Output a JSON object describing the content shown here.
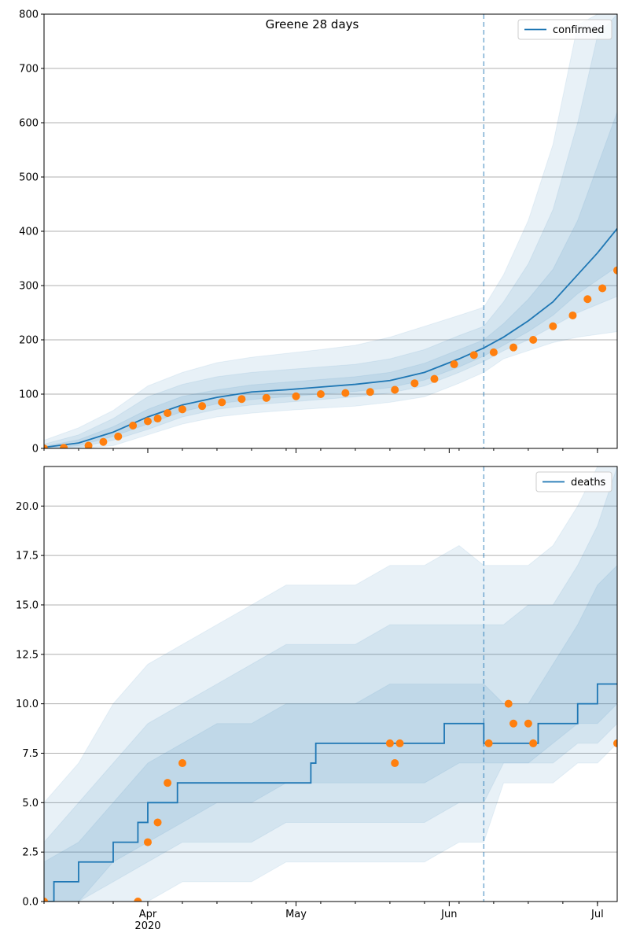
{
  "colors": {
    "line": "#1f77b4",
    "band": "#1f77b4",
    "points": "#ff7f0e",
    "grid": "#b0b0b0",
    "forecast_line": "#1f77b4"
  },
  "chart_data": [
    {
      "type": "line",
      "title": "Greene 28 days",
      "xlabel": "",
      "ylabel": "",
      "x_range": [
        "2020-03-11",
        "2020-07-05"
      ],
      "ylim": [
        0,
        800
      ],
      "yticks": [
        0,
        100,
        200,
        300,
        400,
        500,
        600,
        700,
        800
      ],
      "ytick_labels": [
        "0",
        "100",
        "200",
        "300",
        "400",
        "500",
        "600",
        "700",
        "800"
      ],
      "grid": "horizontal",
      "legend": "top-right",
      "forecast_start": "2020-06-08",
      "series": [
        {
          "name": "confirmed",
          "kind": "median",
          "x": [
            "2020-03-11",
            "2020-03-18",
            "2020-03-25",
            "2020-04-01",
            "2020-04-08",
            "2020-04-15",
            "2020-04-22",
            "2020-04-29",
            "2020-05-06",
            "2020-05-13",
            "2020-05-20",
            "2020-05-27",
            "2020-06-03",
            "2020-06-08",
            "2020-06-12",
            "2020-06-17",
            "2020-06-22",
            "2020-06-27",
            "2020-07-01",
            "2020-07-05"
          ],
          "values": [
            2,
            10,
            30,
            58,
            80,
            94,
            104,
            108,
            113,
            118,
            125,
            140,
            165,
            185,
            205,
            235,
            270,
            320,
            360,
            405
          ]
        },
        {
          "name": "",
          "kind": "observed",
          "x": [
            "2020-03-11",
            "2020-03-15",
            "2020-03-20",
            "2020-03-23",
            "2020-03-26",
            "2020-03-29",
            "2020-04-01",
            "2020-04-03",
            "2020-04-05",
            "2020-04-08",
            "2020-04-12",
            "2020-04-16",
            "2020-04-20",
            "2020-04-25",
            "2020-05-01",
            "2020-05-06",
            "2020-05-11",
            "2020-05-16",
            "2020-05-21",
            "2020-05-25",
            "2020-05-29",
            "2020-06-02",
            "2020-06-06",
            "2020-06-10",
            "2020-06-14",
            "2020-06-18",
            "2020-06-22",
            "2020-06-26",
            "2020-06-29",
            "2020-07-02",
            "2020-07-05"
          ],
          "values": [
            0,
            1,
            5,
            12,
            22,
            42,
            50,
            55,
            65,
            72,
            78,
            85,
            91,
            93,
            96,
            100,
            102,
            104,
            108,
            120,
            128,
            155,
            172,
            177,
            186,
            200,
            225,
            245,
            275,
            295,
            328
          ]
        }
      ],
      "bands": [
        {
          "name": "",
          "level": "outer",
          "x": [
            "2020-03-11",
            "2020-03-18",
            "2020-03-25",
            "2020-04-01",
            "2020-04-08",
            "2020-04-15",
            "2020-04-22",
            "2020-04-29",
            "2020-05-06",
            "2020-05-13",
            "2020-05-20",
            "2020-05-27",
            "2020-06-03",
            "2020-06-08",
            "2020-06-12",
            "2020-06-17",
            "2020-06-22",
            "2020-06-27",
            "2020-07-01",
            "2020-07-05"
          ],
          "low": [
            0,
            0,
            5,
            25,
            45,
            58,
            65,
            70,
            74,
            78,
            85,
            95,
            120,
            140,
            165,
            180,
            195,
            205,
            210,
            215
          ],
          "high": [
            15,
            38,
            70,
            115,
            140,
            158,
            168,
            175,
            182,
            190,
            205,
            225,
            245,
            260,
            320,
            420,
            560,
            780,
            800,
            800
          ]
        },
        {
          "name": "",
          "level": "middle",
          "x": [
            "2020-03-11",
            "2020-03-18",
            "2020-03-25",
            "2020-04-01",
            "2020-04-08",
            "2020-04-15",
            "2020-04-22",
            "2020-04-29",
            "2020-05-06",
            "2020-05-13",
            "2020-05-20",
            "2020-05-27",
            "2020-06-03",
            "2020-06-08",
            "2020-06-12",
            "2020-06-17",
            "2020-06-22",
            "2020-06-27",
            "2020-07-01",
            "2020-07-05"
          ],
          "low": [
            0,
            2,
            15,
            35,
            58,
            72,
            80,
            85,
            90,
            95,
            102,
            115,
            140,
            160,
            180,
            200,
            225,
            250,
            265,
            280
          ],
          "high": [
            8,
            25,
            55,
            95,
            118,
            132,
            140,
            145,
            150,
            155,
            165,
            182,
            208,
            225,
            270,
            340,
            440,
            600,
            760,
            800
          ]
        },
        {
          "name": "",
          "level": "inner",
          "x": [
            "2020-03-11",
            "2020-03-18",
            "2020-03-25",
            "2020-04-01",
            "2020-04-08",
            "2020-04-15",
            "2020-04-22",
            "2020-04-29",
            "2020-05-06",
            "2020-05-13",
            "2020-05-20",
            "2020-05-27",
            "2020-06-03",
            "2020-06-08",
            "2020-06-12",
            "2020-06-17",
            "2020-06-22",
            "2020-06-27",
            "2020-07-01",
            "2020-07-05"
          ],
          "low": [
            0,
            5,
            22,
            45,
            68,
            82,
            90,
            95,
            100,
            105,
            112,
            126,
            150,
            170,
            190,
            215,
            245,
            285,
            310,
            335
          ],
          "high": [
            4,
            16,
            40,
            72,
            96,
            108,
            117,
            122,
            127,
            132,
            140,
            157,
            182,
            200,
            230,
            275,
            330,
            420,
            520,
            620
          ]
        }
      ]
    },
    {
      "type": "line",
      "title": "",
      "xlabel": "",
      "ylabel": "",
      "x_range": [
        "2020-03-11",
        "2020-07-05"
      ],
      "ylim": [
        0,
        22
      ],
      "yticks": [
        0,
        2.5,
        5,
        7.5,
        10,
        12.5,
        15,
        17.5,
        20
      ],
      "ytick_labels": [
        "0.0",
        "2.5",
        "5.0",
        "7.5",
        "10.0",
        "12.5",
        "15.0",
        "17.5",
        "20.0"
      ],
      "xtick_labels": [
        "Apr\n2020",
        "May",
        "Jun",
        "Jul"
      ],
      "xticks": [
        "2020-04-01",
        "2020-05-01",
        "2020-06-01",
        "2020-07-01"
      ],
      "grid": "horizontal",
      "legend": "top-right",
      "forecast_start": "2020-06-08",
      "series": [
        {
          "name": "deaths",
          "kind": "median-step",
          "x": [
            "2020-03-11",
            "2020-03-13",
            "2020-03-18",
            "2020-03-25",
            "2020-03-30",
            "2020-04-01",
            "2020-04-07",
            "2020-04-17",
            "2020-05-04",
            "2020-05-05",
            "2020-05-31",
            "2020-06-07",
            "2020-06-08",
            "2020-06-19",
            "2020-06-27",
            "2020-07-01",
            "2020-07-05"
          ],
          "values": [
            0,
            1,
            2,
            3,
            4,
            5,
            6,
            6,
            7,
            8,
            9,
            9,
            8,
            9,
            10,
            11,
            11
          ]
        },
        {
          "name": "",
          "kind": "observed",
          "x": [
            "2020-03-11",
            "2020-03-30",
            "2020-04-01",
            "2020-04-03",
            "2020-04-05",
            "2020-04-08",
            "2020-05-20",
            "2020-05-21",
            "2020-05-22",
            "2020-06-09",
            "2020-06-13",
            "2020-06-14",
            "2020-06-17",
            "2020-06-18",
            "2020-07-05"
          ],
          "values": [
            0,
            0,
            3,
            4,
            6,
            7,
            8,
            7,
            8,
            8,
            10,
            9,
            9,
            8,
            8
          ]
        }
      ],
      "bands": [
        {
          "name": "",
          "level": "outer",
          "x": [
            "2020-03-11",
            "2020-03-18",
            "2020-03-25",
            "2020-04-01",
            "2020-04-08",
            "2020-04-15",
            "2020-04-22",
            "2020-04-29",
            "2020-05-06",
            "2020-05-13",
            "2020-05-20",
            "2020-05-27",
            "2020-06-03",
            "2020-06-08",
            "2020-06-12",
            "2020-06-17",
            "2020-06-22",
            "2020-06-27",
            "2020-07-01",
            "2020-07-05"
          ],
          "low": [
            0,
            0,
            0,
            0,
            1,
            1,
            1,
            2,
            2,
            2,
            2,
            2,
            3,
            3,
            6,
            6,
            6,
            7,
            7,
            8
          ],
          "high": [
            5,
            7,
            10,
            12,
            13,
            14,
            15,
            16,
            16,
            16,
            17,
            17,
            18,
            17,
            17,
            17,
            18,
            20,
            22,
            22
          ]
        },
        {
          "name": "",
          "level": "middle",
          "x": [
            "2020-03-11",
            "2020-03-18",
            "2020-03-25",
            "2020-04-01",
            "2020-04-08",
            "2020-04-15",
            "2020-04-22",
            "2020-04-29",
            "2020-05-06",
            "2020-05-13",
            "2020-05-20",
            "2020-05-27",
            "2020-06-03",
            "2020-06-08",
            "2020-06-12",
            "2020-06-17",
            "2020-06-22",
            "2020-06-27",
            "2020-07-01",
            "2020-07-05"
          ],
          "low": [
            0,
            0,
            1,
            2,
            3,
            3,
            3,
            4,
            4,
            4,
            4,
            4,
            5,
            5,
            7,
            7,
            7,
            8,
            8,
            9
          ],
          "high": [
            3,
            5,
            7,
            9,
            10,
            11,
            12,
            13,
            13,
            13,
            14,
            14,
            14,
            14,
            14,
            15,
            15,
            17,
            19,
            22
          ]
        },
        {
          "name": "",
          "level": "inner",
          "x": [
            "2020-03-11",
            "2020-03-18",
            "2020-03-25",
            "2020-04-01",
            "2020-04-08",
            "2020-04-15",
            "2020-04-22",
            "2020-04-29",
            "2020-05-06",
            "2020-05-13",
            "2020-05-20",
            "2020-05-27",
            "2020-06-03",
            "2020-06-08",
            "2020-06-12",
            "2020-06-17",
            "2020-06-22",
            "2020-06-27",
            "2020-07-01",
            "2020-07-05"
          ],
          "low": [
            0,
            0,
            2,
            3,
            4,
            5,
            5,
            6,
            6,
            6,
            6,
            6,
            7,
            7,
            7,
            7,
            8,
            9,
            9,
            10
          ],
          "high": [
            2,
            3,
            5,
            7,
            8,
            9,
            9,
            10,
            10,
            10,
            11,
            11,
            11,
            11,
            10,
            10,
            12,
            14,
            16,
            17
          ]
        }
      ]
    }
  ]
}
